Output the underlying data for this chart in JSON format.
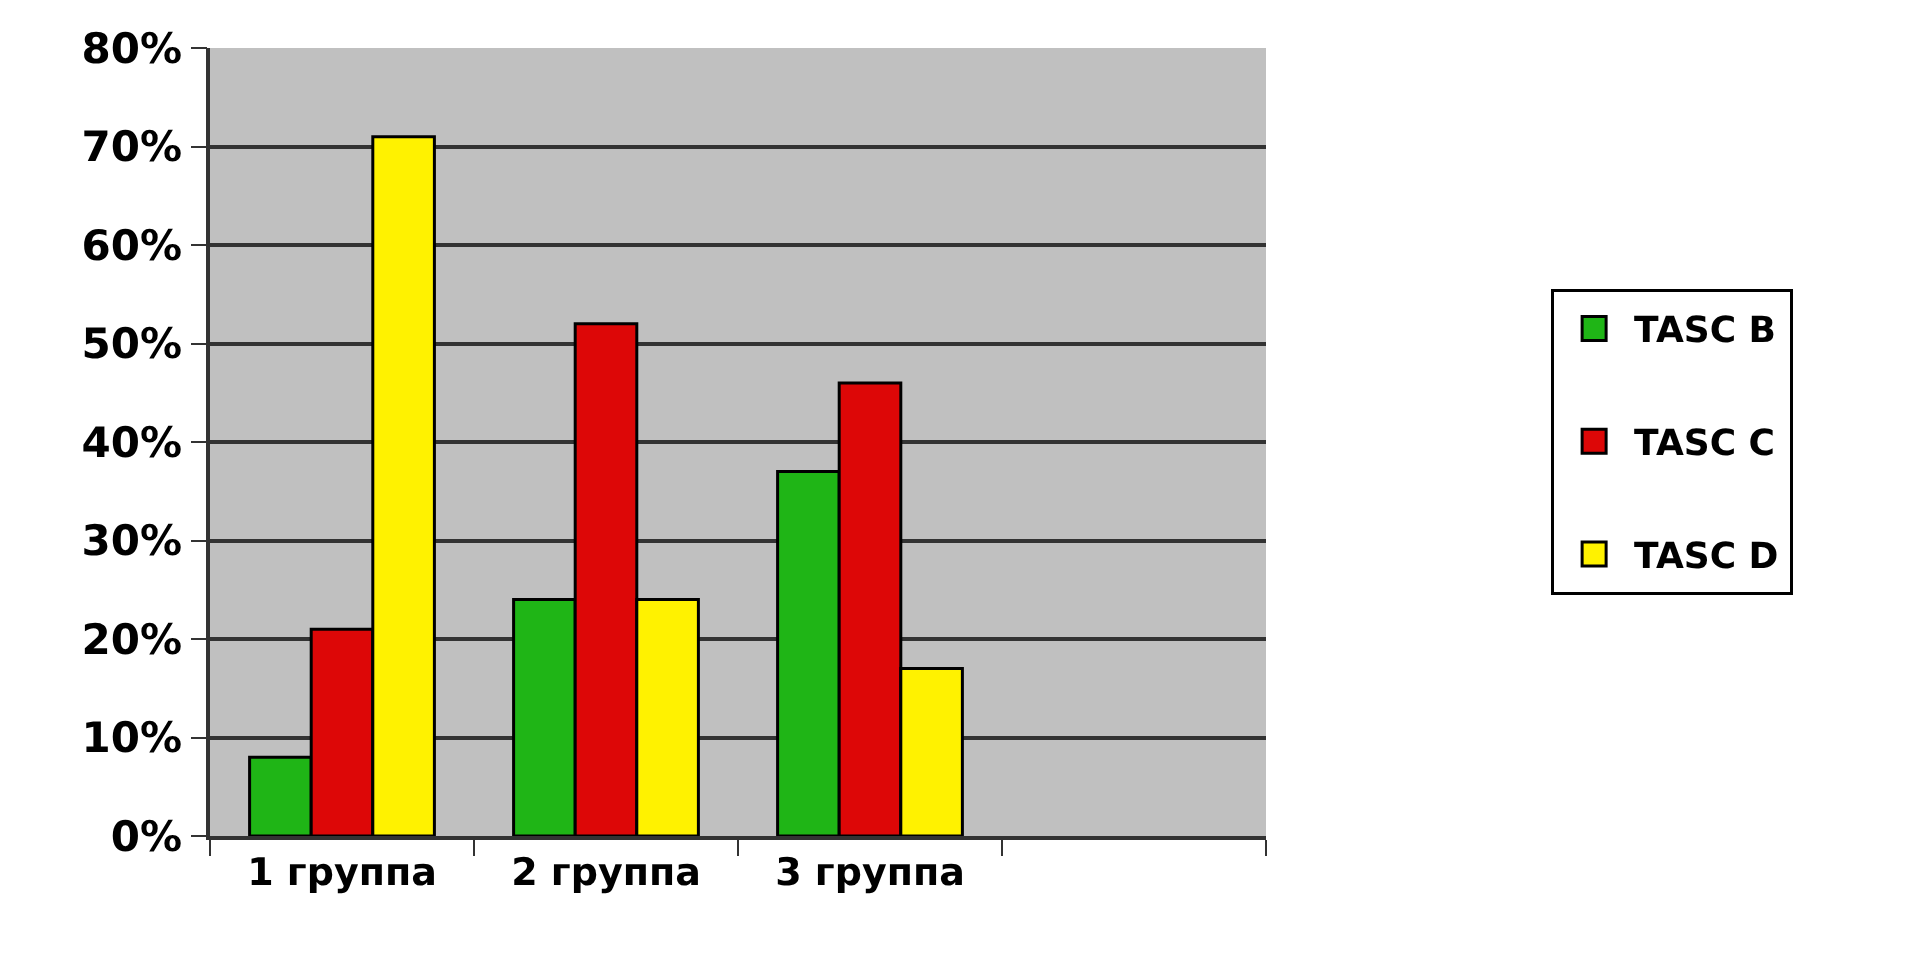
{
  "chart_data": {
    "type": "bar",
    "categories": [
      "1 группа",
      "2 группа",
      "3 группа",
      null
    ],
    "series": [
      {
        "name": "TASC B",
        "color": "#1fb516",
        "values": [
          8,
          24,
          37,
          null
        ]
      },
      {
        "name": "TASC C",
        "color": "#dd0707",
        "values": [
          21,
          52,
          46,
          null
        ]
      },
      {
        "name": "TASC D",
        "color": "#fff200",
        "values": [
          71,
          24,
          17,
          null
        ]
      }
    ],
    "ylim": [
      0,
      80
    ],
    "yticks": [
      {
        "value": 0,
        "label": "0%"
      },
      {
        "value": 10,
        "label": "10%"
      },
      {
        "value": 20,
        "label": "20%"
      },
      {
        "value": 30,
        "label": "30%"
      },
      {
        "value": 40,
        "label": "40%"
      },
      {
        "value": 50,
        "label": "50%"
      },
      {
        "value": 60,
        "label": "60%"
      },
      {
        "value": 70,
        "label": "70%"
      },
      {
        "value": 80,
        "label": "80%"
      }
    ],
    "grid": "y",
    "legend": "right"
  }
}
